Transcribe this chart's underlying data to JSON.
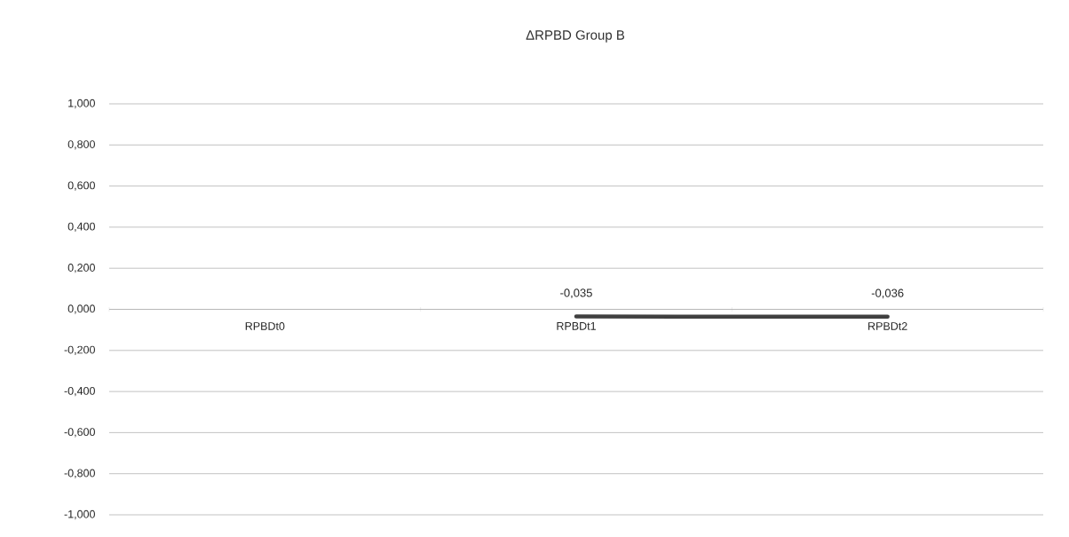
{
  "chart_data": {
    "type": "line",
    "title": "ΔRPBD Group B",
    "categories": [
      "RPBDt0",
      "RPBDt1",
      "RPBDt2"
    ],
    "series": [
      {
        "color": "#404040",
        "values": [
          null,
          -0.035,
          -0.036
        ],
        "value_labels": [
          null,
          "-0,035",
          "-0,036"
        ]
      }
    ],
    "ylim": [
      -1,
      1
    ],
    "yticks": [
      {
        "value": -1,
        "label": "-1,000"
      },
      {
        "value": -0.8,
        "label": "-0,800"
      },
      {
        "value": -0.6,
        "label": "-0,600"
      },
      {
        "value": -0.4,
        "label": "-0,400"
      },
      {
        "value": -0.2,
        "label": "-0,200"
      },
      {
        "value": 0,
        "label": "0,000"
      },
      {
        "value": 0.2,
        "label": "0,200"
      },
      {
        "value": 0.4,
        "label": "0,400"
      },
      {
        "value": 0.6,
        "label": "0,600"
      },
      {
        "value": 0.8,
        "label": "0,800"
      },
      {
        "value": 1,
        "label": "1,000"
      }
    ],
    "grid": "y",
    "legend": false,
    "marker": "none",
    "line_style": "solid"
  }
}
